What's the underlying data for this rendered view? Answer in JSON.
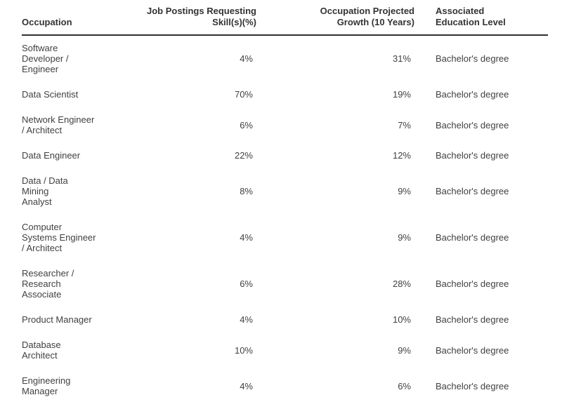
{
  "colors": {
    "background": "#ffffff",
    "header_text": "#333333",
    "body_text": "#414141",
    "header_rule": "#2e2e2e"
  },
  "table": {
    "columns": [
      {
        "label": "Occupation"
      },
      {
        "label": "Job Postings Requesting\nSkill(s)(%)"
      },
      {
        "label": "Occupation Projected\nGrowth (10 Years)"
      },
      {
        "label": "Associated\nEducation Level"
      }
    ],
    "rows": [
      {
        "occupation": "Software\nDeveloper /\nEngineer",
        "postings_pct": "4%",
        "growth_pct": "31%",
        "education": "Bachelor's degree"
      },
      {
        "occupation": "Data Scientist",
        "postings_pct": "70%",
        "growth_pct": "19%",
        "education": "Bachelor's degree"
      },
      {
        "occupation": "Network Engineer\n/ Architect",
        "postings_pct": "6%",
        "growth_pct": "7%",
        "education": "Bachelor's degree"
      },
      {
        "occupation": "Data Engineer",
        "postings_pct": "22%",
        "growth_pct": "12%",
        "education": "Bachelor's degree"
      },
      {
        "occupation": "Data / Data Mining\nAnalyst",
        "postings_pct": "8%",
        "growth_pct": "9%",
        "education": "Bachelor's degree"
      },
      {
        "occupation": "Computer\nSystems Engineer\n/ Architect",
        "postings_pct": "4%",
        "growth_pct": "9%",
        "education": "Bachelor's degree"
      },
      {
        "occupation": "Researcher /\nResearch\nAssociate",
        "postings_pct": "6%",
        "growth_pct": "28%",
        "education": "Bachelor's degree"
      },
      {
        "occupation": "Product Manager",
        "postings_pct": "4%",
        "growth_pct": "10%",
        "education": "Bachelor's degree"
      },
      {
        "occupation": "Database\nArchitect",
        "postings_pct": "10%",
        "growth_pct": "9%",
        "education": "Bachelor's degree"
      },
      {
        "occupation": "Engineering\nManager",
        "postings_pct": "4%",
        "growth_pct": "6%",
        "education": "Bachelor's degree"
      }
    ]
  },
  "chart_data": {
    "type": "table",
    "title": "",
    "columns": [
      "Occupation",
      "Job Postings Requesting Skill(s)(%)",
      "Occupation Projected Growth (10 Years)",
      "Associated Education Level"
    ],
    "rows": [
      [
        "Software Developer / Engineer",
        "4%",
        "31%",
        "Bachelor's degree"
      ],
      [
        "Data Scientist",
        "70%",
        "19%",
        "Bachelor's degree"
      ],
      [
        "Network Engineer / Architect",
        "6%",
        "7%",
        "Bachelor's degree"
      ],
      [
        "Data Engineer",
        "22%",
        "12%",
        "Bachelor's degree"
      ],
      [
        "Data / Data Mining Analyst",
        "8%",
        "9%",
        "Bachelor's degree"
      ],
      [
        "Computer Systems Engineer / Architect",
        "4%",
        "9%",
        "Bachelor's degree"
      ],
      [
        "Researcher / Research Associate",
        "6%",
        "28%",
        "Bachelor's degree"
      ],
      [
        "Product Manager",
        "4%",
        "10%",
        "Bachelor's degree"
      ],
      [
        "Database Architect",
        "10%",
        "9%",
        "Bachelor's degree"
      ],
      [
        "Engineering Manager",
        "4%",
        "6%",
        "Bachelor's degree"
      ]
    ],
    "postings_pct_values": [
      4,
      70,
      6,
      22,
      8,
      4,
      6,
      4,
      10,
      4
    ],
    "growth_pct_values": [
      31,
      19,
      7,
      12,
      9,
      9,
      28,
      10,
      9,
      6
    ]
  }
}
